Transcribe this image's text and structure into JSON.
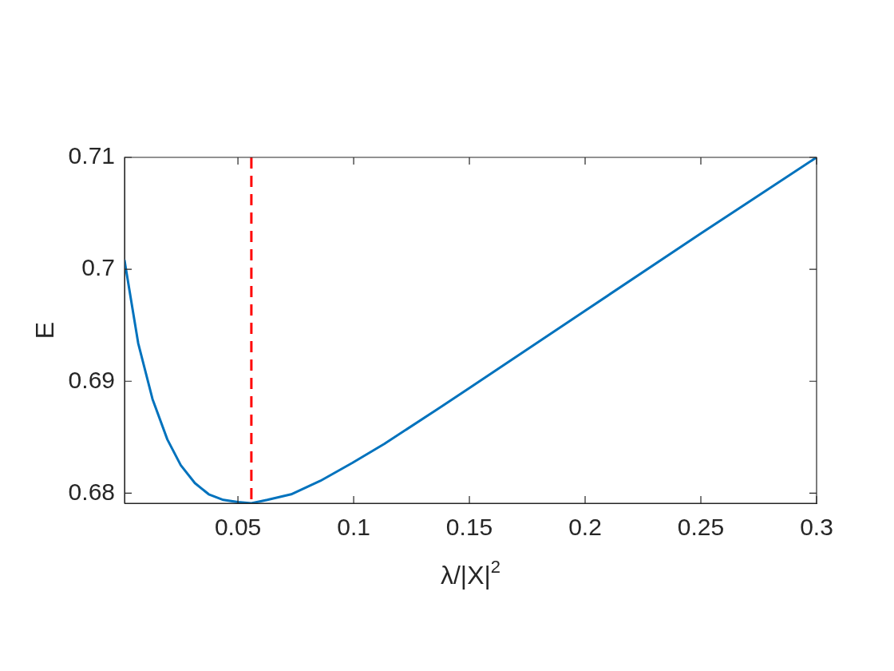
{
  "chart_data": {
    "type": "line",
    "xlabel": "λ/|X|$^{2}$",
    "ylabel": "E",
    "xlim": [
      0.001,
      0.3
    ],
    "ylim": [
      0.6791,
      0.71
    ],
    "xticks": [
      0.05,
      0.1,
      0.15,
      0.2,
      0.25,
      0.3
    ],
    "yticks": [
      0.68,
      0.69,
      0.7,
      0.71
    ],
    "series": [
      {
        "color": "#0072bd",
        "x": [
          0.001,
          0.0069,
          0.0131,
          0.0195,
          0.0253,
          0.0314,
          0.0374,
          0.0437,
          0.05,
          0.0558,
          0.0627,
          0.073,
          0.0856,
          0.0994,
          0.1132,
          0.1362,
          0.15,
          0.2,
          0.25,
          0.3
        ],
        "values": [
          0.7008,
          0.6934,
          0.6884,
          0.6848,
          0.6825,
          0.6809,
          0.6799,
          0.6794,
          0.6792,
          0.6791,
          0.6794,
          0.6799,
          0.6811,
          0.6827,
          0.6844,
          0.6875,
          0.6894,
          0.6963,
          0.7032,
          0.71
        ]
      }
    ],
    "ref_lines": [
      {
        "axis": "x",
        "value": 0.0558,
        "color": "#ff0000",
        "line_style": "dashed"
      }
    ],
    "marker": "none",
    "line_style": "solid"
  }
}
